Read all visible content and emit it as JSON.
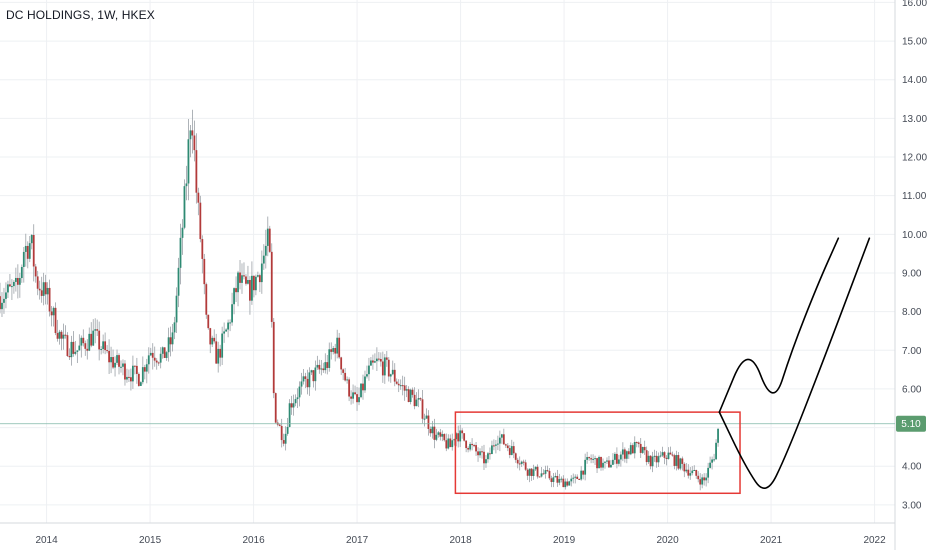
{
  "chart": {
    "title": "DC HOLDINGS, 1W, HKEX",
    "last_price_label": "5.10"
  },
  "colors": {
    "up": "#2e8a73",
    "down": "#b23a3a",
    "wick": "#9aa0a6",
    "grid": "#eef0f3",
    "last_price_line": "#7fb8a8",
    "last_price_tag": "#5b9c6f",
    "box": "#e53935",
    "drawing": "#000000"
  },
  "chart_data": {
    "type": "line",
    "title": "DC HOLDINGS, 1W, HKEX",
    "xlabel": "",
    "ylabel": "",
    "xlim": [
      2013.55,
      2022.0
    ],
    "ylim": [
      2.4,
      16.05
    ],
    "y_ticks": [
      "3.00",
      "4.00",
      "5.00",
      "6.00",
      "7.00",
      "8.00",
      "9.00",
      "10.00",
      "11.00",
      "12.00",
      "13.00",
      "14.00",
      "15.00",
      "16.00"
    ],
    "x_ticks": [
      "2014",
      "2015",
      "2016",
      "2017",
      "2018",
      "2019",
      "2020",
      "2021",
      "2022"
    ],
    "grid": true,
    "last_price": 5.1,
    "series": [
      {
        "type": "price",
        "x": [
          2013.55,
          2013.72,
          2013.78,
          2013.85,
          2013.9,
          2014.0,
          2014.15,
          2014.3,
          2014.45,
          2014.6,
          2014.75,
          2014.9,
          2015.0,
          2015.12,
          2015.22,
          2015.3,
          2015.35,
          2015.4,
          2015.45,
          2015.5,
          2015.55,
          2015.65,
          2015.75,
          2015.85,
          2015.95,
          2016.05,
          2016.15,
          2016.2,
          2016.25,
          2016.3,
          2016.35,
          2016.45,
          2016.55,
          2016.7,
          2016.8,
          2016.9,
          2017.0,
          2017.1,
          2017.2,
          2017.3,
          2017.45,
          2017.6,
          2017.75,
          2017.9,
          2017.95,
          2018.1,
          2018.25,
          2018.35,
          2018.5,
          2018.65,
          2018.8,
          2018.95,
          2019.1,
          2019.25,
          2019.4,
          2019.55,
          2019.7,
          2019.85,
          2020.0,
          2020.15,
          2020.25,
          2020.35,
          2020.45,
          2020.5
        ],
        "y": [
          8.4,
          8.6,
          9.6,
          9.8,
          8.8,
          8.4,
          7.2,
          7.0,
          7.4,
          6.8,
          6.5,
          6.3,
          7.0,
          6.8,
          7.3,
          9.8,
          11.4,
          13.4,
          11.0,
          9.5,
          7.4,
          6.8,
          7.6,
          8.8,
          8.5,
          9.0,
          9.9,
          5.4,
          5.0,
          4.7,
          5.6,
          6.0,
          6.3,
          6.6,
          7.2,
          6.1,
          5.6,
          6.4,
          6.7,
          6.5,
          6.0,
          5.6,
          4.8,
          4.5,
          4.9,
          4.5,
          4.1,
          4.8,
          4.4,
          3.9,
          3.8,
          3.6,
          3.6,
          4.2,
          4.0,
          4.3,
          4.5,
          4.1,
          4.3,
          4.0,
          3.8,
          3.6,
          4.3,
          5.1
        ]
      }
    ],
    "annotations": [
      {
        "type": "rectangle",
        "x": [
          2017.95,
          2020.7
        ],
        "y": [
          3.3,
          5.4
        ]
      },
      {
        "type": "projection",
        "label": "upper path",
        "x": [
          2020.5,
          2020.78,
          2021.02,
          2021.2,
          2021.45,
          2021.65
        ],
        "y": [
          5.4,
          7.2,
          5.5,
          7.0,
          8.7,
          9.9
        ]
      },
      {
        "type": "projection",
        "label": "lower path",
        "x": [
          2020.5,
          2020.75,
          2020.95,
          2021.15,
          2021.5,
          2021.95
        ],
        "y": [
          5.4,
          4.0,
          3.2,
          4.3,
          6.7,
          9.9
        ]
      }
    ]
  }
}
